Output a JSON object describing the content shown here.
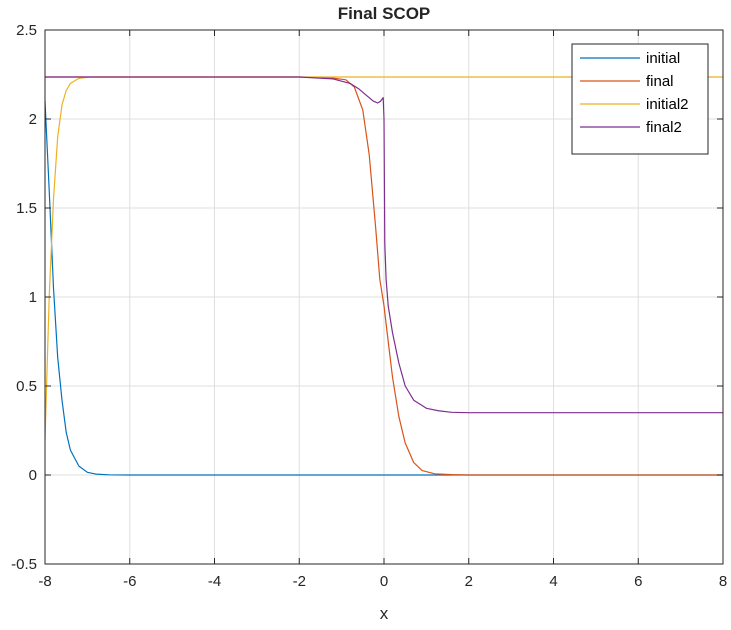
{
  "chart_data": {
    "type": "line",
    "title": "Final SCOP",
    "xlabel": "x",
    "ylabel": "",
    "xlim": [
      -8,
      8
    ],
    "ylim": [
      -0.5,
      2.5
    ],
    "xticks": [
      -8,
      -6,
      -4,
      -2,
      0,
      2,
      4,
      6,
      8
    ],
    "yticks": [
      -0.5,
      0,
      0.5,
      1,
      1.5,
      2,
      2.5
    ],
    "xtick_labels": [
      "-8",
      "-6",
      "-4",
      "-2",
      "0",
      "2",
      "4",
      "6",
      "8"
    ],
    "ytick_labels": [
      "-0.5",
      "0",
      "0.5",
      "1",
      "1.5",
      "2",
      "2.5"
    ],
    "grid": true,
    "legend_position": "top-right",
    "series": [
      {
        "name": "initial",
        "color": "#0072BD",
        "x": [
          -8,
          -7.9,
          -7.8,
          -7.7,
          -7.6,
          -7.5,
          -7.4,
          -7.2,
          -7.0,
          -6.8,
          -6.5,
          -6,
          -4,
          -2,
          0,
          2,
          4,
          6,
          8
        ],
        "y": [
          2.1,
          1.6,
          1.05,
          0.66,
          0.42,
          0.24,
          0.14,
          0.05,
          0.015,
          0.005,
          0.001,
          0,
          0,
          0,
          0,
          0,
          0,
          0,
          0
        ]
      },
      {
        "name": "final",
        "color": "#D95319",
        "x": [
          -8,
          -4,
          -2,
          -1.2,
          -0.9,
          -0.7,
          -0.5,
          -0.35,
          -0.2,
          -0.1,
          0,
          0.1,
          0.2,
          0.35,
          0.5,
          0.7,
          0.9,
          1.2,
          1.6,
          2,
          4,
          6,
          8
        ],
        "y": [
          2.236,
          2.236,
          2.236,
          2.23,
          2.22,
          2.18,
          2.05,
          1.8,
          1.4,
          1.1,
          0.95,
          0.75,
          0.55,
          0.33,
          0.18,
          0.07,
          0.025,
          0.007,
          0.002,
          0,
          0,
          0,
          0
        ]
      },
      {
        "name": "initial2",
        "color": "#EDB120",
        "x": [
          -8,
          -7.9,
          -7.8,
          -7.7,
          -7.6,
          -7.5,
          -7.4,
          -7.2,
          -7.0,
          -6.8,
          -6.5,
          -6,
          -4,
          -2,
          0,
          2,
          4,
          6,
          8
        ],
        "y": [
          0.2,
          1.0,
          1.55,
          1.9,
          2.08,
          2.16,
          2.2,
          2.228,
          2.234,
          2.236,
          2.236,
          2.236,
          2.236,
          2.236,
          2.236,
          2.236,
          2.236,
          2.236,
          2.236
        ]
      },
      {
        "name": "final2",
        "color": "#7E2F8E",
        "x": [
          -8,
          -4,
          -2,
          -1.2,
          -0.8,
          -0.6,
          -0.4,
          -0.25,
          -0.15,
          -0.08,
          -0.05,
          -0.02,
          0,
          0.02,
          0.05,
          0.1,
          0.2,
          0.35,
          0.5,
          0.7,
          1.0,
          1.3,
          1.6,
          2,
          4,
          6,
          8
        ],
        "y": [
          2.236,
          2.236,
          2.236,
          2.225,
          2.2,
          2.17,
          2.13,
          2.1,
          2.09,
          2.1,
          2.11,
          2.12,
          2.0,
          1.3,
          1.1,
          0.95,
          0.8,
          0.63,
          0.5,
          0.42,
          0.375,
          0.36,
          0.352,
          0.35,
          0.35,
          0.35,
          0.35
        ]
      }
    ]
  }
}
